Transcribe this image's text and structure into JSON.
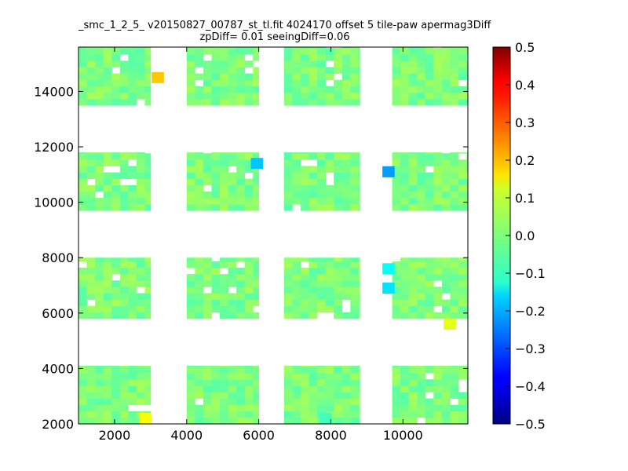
{
  "chart_data": {
    "type": "heatmap",
    "title_line1": "_smc_1_2_5_ v20150827_00787_st_tl.fit 4024170 offset 5 tile-paw apermag3Diff",
    "title_line2": "zpDiff= 0.01 seeingDiff=0.06",
    "xlim": [
      1000,
      11800
    ],
    "ylim": [
      2000,
      15600
    ],
    "xticks": [
      2000,
      4000,
      6000,
      8000,
      10000
    ],
    "yticks": [
      2000,
      4000,
      6000,
      8000,
      10000,
      12000,
      14000
    ],
    "colorbar": {
      "colormap": "jet",
      "range": [
        -0.5,
        0.5
      ],
      "ticks": [
        "0.5",
        "0.4",
        "0.3",
        "0.2",
        "0.1",
        "0.0",
        "−0.1",
        "−0.2",
        "−0.3",
        "−0.4",
        "−0.5"
      ]
    },
    "detectors": [
      {
        "x": [
          1000,
          3000
        ],
        "y": [
          13500,
          15600
        ]
      },
      {
        "x": [
          4000,
          6000
        ],
        "y": [
          13500,
          15600
        ]
      },
      {
        "x": [
          6700,
          8800
        ],
        "y": [
          13500,
          15600
        ]
      },
      {
        "x": [
          9700,
          11800
        ],
        "y": [
          13500,
          15600
        ]
      },
      {
        "x": [
          1000,
          3000
        ],
        "y": [
          9700,
          11800
        ]
      },
      {
        "x": [
          4000,
          6000
        ],
        "y": [
          9700,
          11800
        ]
      },
      {
        "x": [
          6700,
          8800
        ],
        "y": [
          9700,
          11800
        ]
      },
      {
        "x": [
          9700,
          11800
        ],
        "y": [
          9700,
          11800
        ]
      },
      {
        "x": [
          1000,
          3000
        ],
        "y": [
          5800,
          8000
        ]
      },
      {
        "x": [
          4000,
          6000
        ],
        "y": [
          5800,
          8000
        ]
      },
      {
        "x": [
          6700,
          8800
        ],
        "y": [
          5800,
          8000
        ]
      },
      {
        "x": [
          9700,
          11800
        ],
        "y": [
          5800,
          8000
        ]
      },
      {
        "x": [
          1000,
          3000
        ],
        "y": [
          2000,
          4100
        ]
      },
      {
        "x": [
          4000,
          6000
        ],
        "y": [
          2000,
          4100
        ]
      },
      {
        "x": [
          6700,
          8800
        ],
        "y": [
          2000,
          4100
        ]
      },
      {
        "x": [
          9700,
          11800
        ],
        "y": [
          2000,
          4100
        ]
      }
    ],
    "notable_cells": [
      {
        "x": 3200,
        "y": 14500,
        "value": 0.18
      },
      {
        "x": 5950,
        "y": 11400,
        "value": -0.18
      },
      {
        "x": 9600,
        "y": 11100,
        "value": -0.22
      },
      {
        "x": 9600,
        "y": 7600,
        "value": -0.12
      },
      {
        "x": 9600,
        "y": 6900,
        "value": -0.15
      },
      {
        "x": 11300,
        "y": 5600,
        "value": 0.1
      },
      {
        "x": 2850,
        "y": 2200,
        "value": 0.12
      },
      {
        "x": 7850,
        "y": 2200,
        "value": -0.06
      }
    ],
    "base_value": 0.0
  }
}
